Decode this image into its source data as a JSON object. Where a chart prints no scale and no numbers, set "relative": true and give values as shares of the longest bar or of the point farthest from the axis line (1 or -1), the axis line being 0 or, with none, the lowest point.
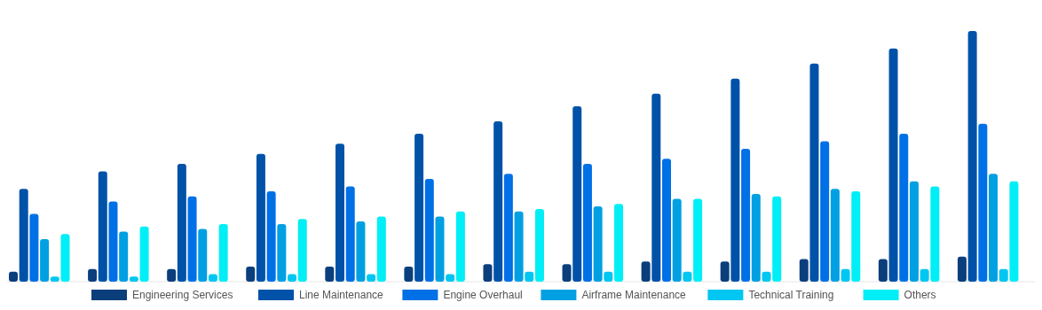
{
  "chart_data": {
    "type": "bar",
    "relative": true,
    "legend": "bottom",
    "categories": [
      null,
      null,
      null,
      null,
      null,
      null,
      null,
      null,
      null,
      null,
      null,
      null,
      null
    ],
    "series": [
      {
        "name": "Engineering Services",
        "color": "#0b3f7c",
        "values": [
          0.04,
          0.05,
          0.05,
          0.06,
          0.06,
          0.06,
          0.07,
          0.07,
          0.08,
          0.08,
          0.09,
          0.09,
          0.1
        ]
      },
      {
        "name": "Line Maintenance",
        "color": "#0052a8",
        "values": [
          0.37,
          0.44,
          0.47,
          0.51,
          0.55,
          0.59,
          0.64,
          0.7,
          0.75,
          0.81,
          0.87,
          0.93,
          1
        ]
      },
      {
        "name": "Engine Overhaul",
        "color": "#0070e6",
        "values": [
          0.27,
          0.32,
          0.34,
          0.36,
          0.38,
          0.41,
          0.43,
          0.47,
          0.49,
          0.53,
          0.56,
          0.59,
          0.63
        ]
      },
      {
        "name": "Airframe Maintenance",
        "color": "#00a0e2",
        "values": [
          0.17,
          0.2,
          0.21,
          0.23,
          0.24,
          0.26,
          0.28,
          0.3,
          0.33,
          0.35,
          0.37,
          0.4,
          0.43
        ]
      },
      {
        "name": "Technical Training",
        "color": "#00c6f2",
        "values": [
          0.02,
          0.02,
          0.03,
          0.03,
          0.03,
          0.03,
          0.04,
          0.04,
          0.04,
          0.04,
          0.05,
          0.05,
          0.05
        ]
      },
      {
        "name": "Others",
        "color": "#00eef6",
        "values": [
          0.19,
          0.22,
          0.23,
          0.25,
          0.26,
          0.28,
          0.29,
          0.31,
          0.33,
          0.34,
          0.36,
          0.38,
          0.4
        ]
      }
    ]
  }
}
